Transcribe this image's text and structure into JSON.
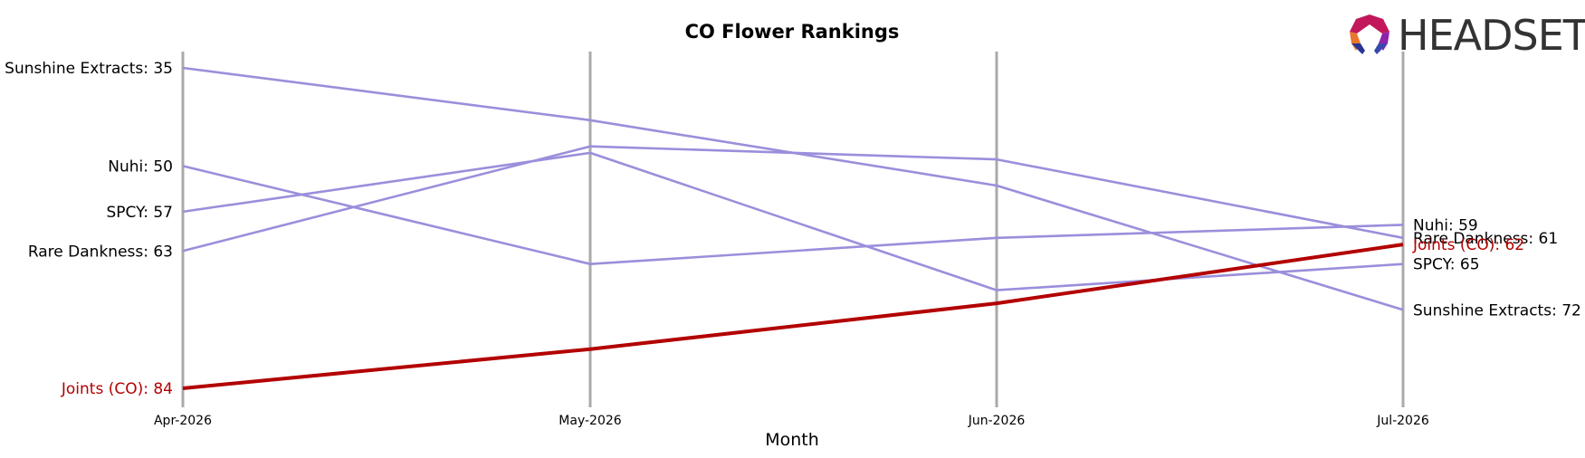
{
  "brand": {
    "name": "HEADSET"
  },
  "chart_data": {
    "type": "line",
    "title": "CO Flower Rankings",
    "xlabel": "Month",
    "ylabel": "",
    "categories": [
      "Apr-2026",
      "May-2026",
      "Jun-2026",
      "Jul-2026"
    ],
    "y_inverted": true,
    "ylim": [
      30,
      87
    ],
    "grid": false,
    "series": [
      {
        "name": "Sunshine Extracts",
        "values": [
          35,
          43,
          53,
          72
        ],
        "start_label": "Sunshine Extracts: 35",
        "end_label": "Sunshine Extracts: 72",
        "color": "#9b8edb",
        "highlight": false
      },
      {
        "name": "Nuhi",
        "values": [
          50,
          65,
          61,
          59
        ],
        "start_label": "Nuhi: 50",
        "end_label": "Nuhi: 59",
        "color": "#9b8edb",
        "highlight": false
      },
      {
        "name": "SPCY",
        "values": [
          57,
          48,
          69,
          65
        ],
        "start_label": "SPCY: 57",
        "end_label": "SPCY: 65",
        "color": "#9b8edb",
        "highlight": false
      },
      {
        "name": "Rare Dankness",
        "values": [
          63,
          47,
          49,
          61
        ],
        "start_label": "Rare Dankness: 63",
        "end_label": "Rare Dankness: 61",
        "color": "#9b8edb",
        "highlight": false
      },
      {
        "name": "Joints (CO)",
        "values": [
          84,
          78,
          71,
          62
        ],
        "start_label": "Joints (CO): 84",
        "end_label": "Joints (CO): 62",
        "color": "#b30000",
        "highlight": true
      }
    ]
  }
}
